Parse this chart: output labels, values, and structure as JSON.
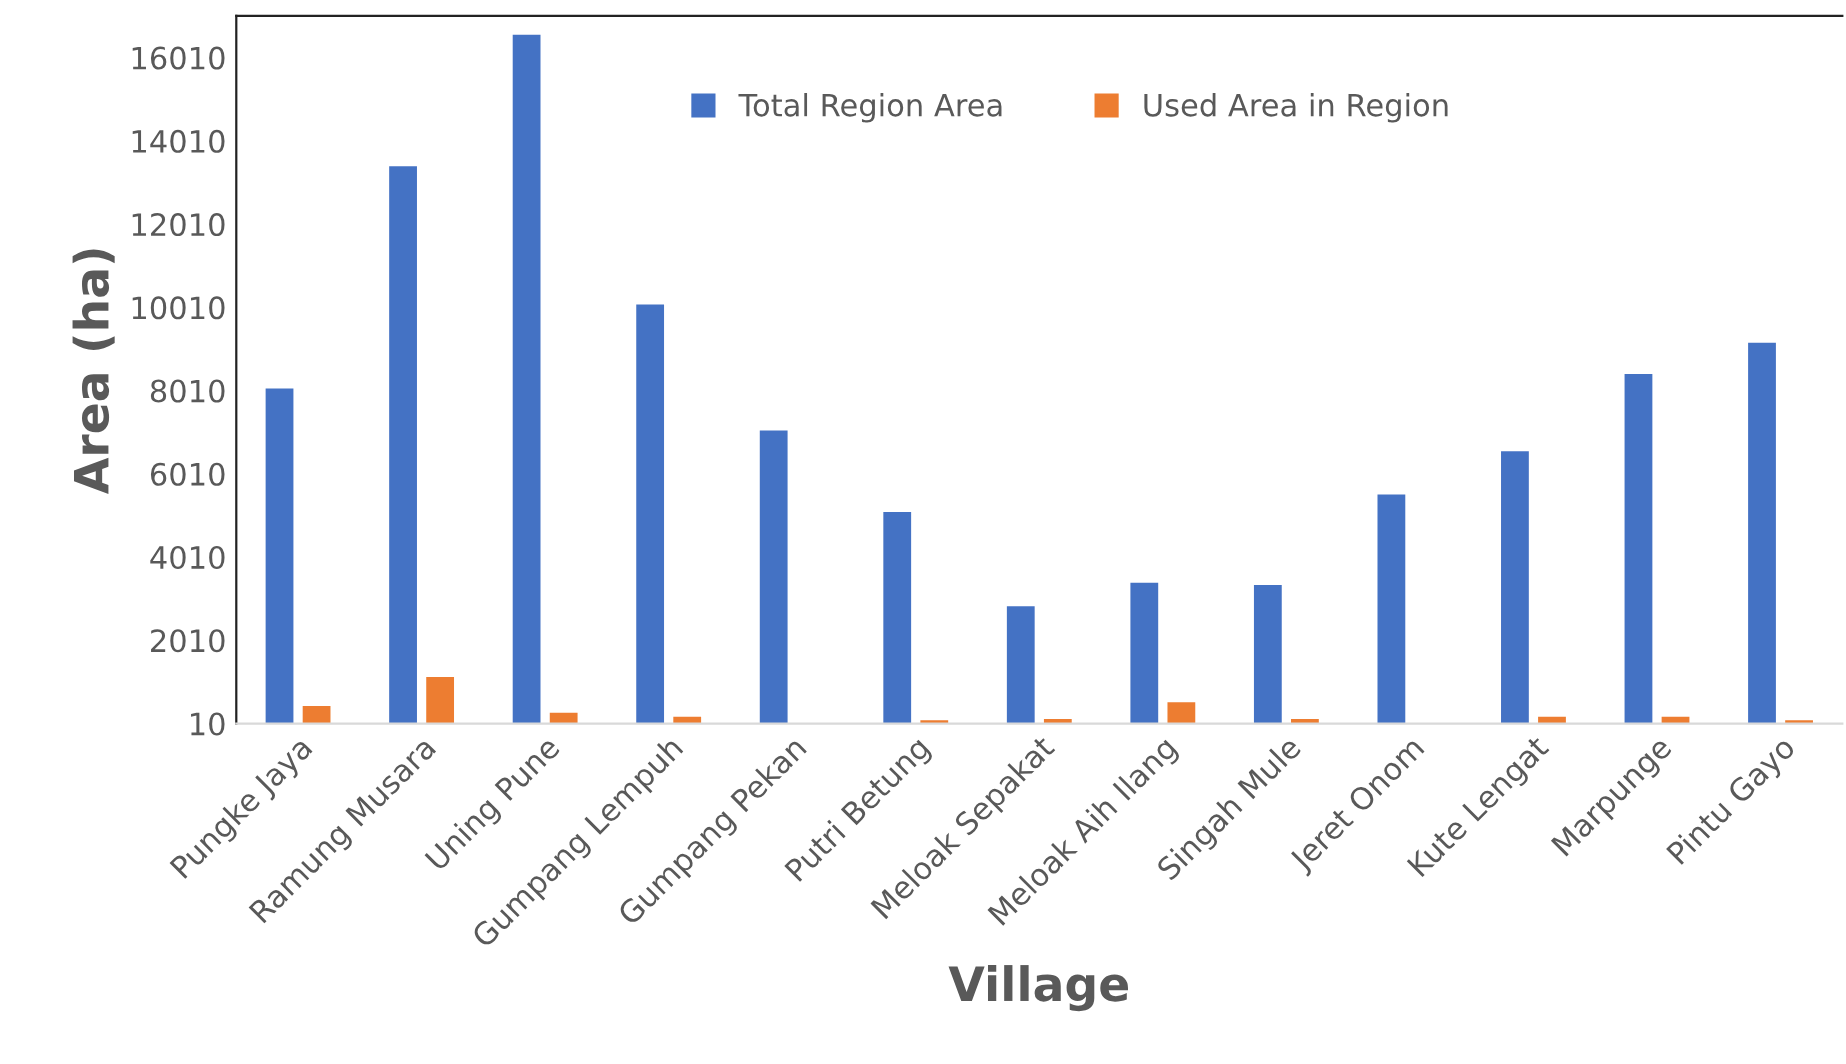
{
  "chart_data": {
    "type": "bar",
    "xlabel": "Village",
    "ylabel": "Area (ha)",
    "categories": [
      "Pungke Jaya",
      "Ramung Musara",
      "Uning Pune",
      "Gumpang Lempuh",
      "Gumpang Pekan",
      "Putri Betung",
      "Meloak Sepakat",
      "Meloak Aih Ilang",
      "Singah Mule",
      "Jeret Onom",
      "Kute Lengat",
      "Marpunge",
      "Pintu Gayo"
    ],
    "series": [
      {
        "name": "Total Region Area",
        "color": "#4472c4",
        "values": [
          8060,
          13400,
          16560,
          10080,
          7050,
          5090,
          2830,
          3390,
          3340,
          5510,
          6550,
          8410,
          9160
        ]
      },
      {
        "name": "Used Area in Region",
        "color": "#ed7d31",
        "values": [
          430,
          1130,
          270,
          170,
          null,
          90,
          120,
          520,
          120,
          null,
          170,
          170,
          90
        ]
      }
    ],
    "ylim": [
      10,
      17010
    ],
    "yticks": [
      10,
      2010,
      4010,
      6010,
      8010,
      10010,
      12010,
      14010,
      16010
    ],
    "legend": "top",
    "grid": false
  }
}
